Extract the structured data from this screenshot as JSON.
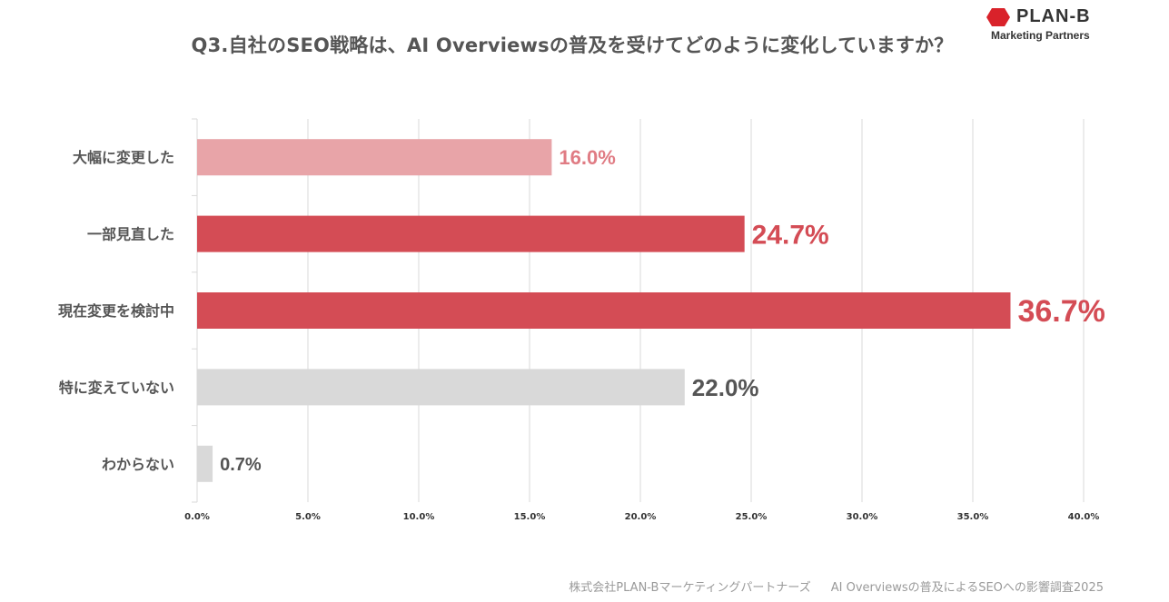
{
  "title": "Q3.自社のSEO戦略は、AI Overviewsの普及を受けてどのように変化していますか？",
  "logo": {
    "name": "PLAN-B",
    "subtitle": "Marketing Partners",
    "mark_color": "#d9222a"
  },
  "footer": {
    "company": "株式会社PLAN-Bマーケティングパートナーズ",
    "survey": "AI Overviewsの普及によるSEOへの影響調査2025"
  },
  "chart_data": {
    "type": "bar",
    "orientation": "horizontal",
    "categories": [
      "大幅に変更した",
      "一部見直した",
      "現在変更を検討中",
      "特に変えていない",
      "わからない"
    ],
    "values": [
      16.0,
      24.7,
      36.7,
      22.0,
      0.7
    ],
    "value_labels": [
      "16.0%",
      "24.7%",
      "36.7%",
      "22.0%",
      "0.7%"
    ],
    "bar_colors": [
      "#e8a4a8",
      "#d44c55",
      "#d44c55",
      "#d9d9d9",
      "#d9d9d9"
    ],
    "label_colors": [
      "#e07c84",
      "#d44c55",
      "#d44c55",
      "#555555",
      "#555555"
    ],
    "label_font_sizes": [
      22,
      30,
      34,
      26,
      20
    ],
    "xlim": [
      0,
      40
    ],
    "x_ticks": [
      "0.0%",
      "5.0%",
      "10.0%",
      "15.0%",
      "20.0%",
      "25.0%",
      "30.0%",
      "35.0%",
      "40.0%"
    ],
    "x_tick_values": [
      0,
      5,
      10,
      15,
      20,
      25,
      30,
      35,
      40
    ],
    "grid": true,
    "title": "Q3.自社のSEO戦略は、AI Overviewsの普及を受けてどのように変化していますか？",
    "xlabel": "",
    "ylabel": ""
  }
}
